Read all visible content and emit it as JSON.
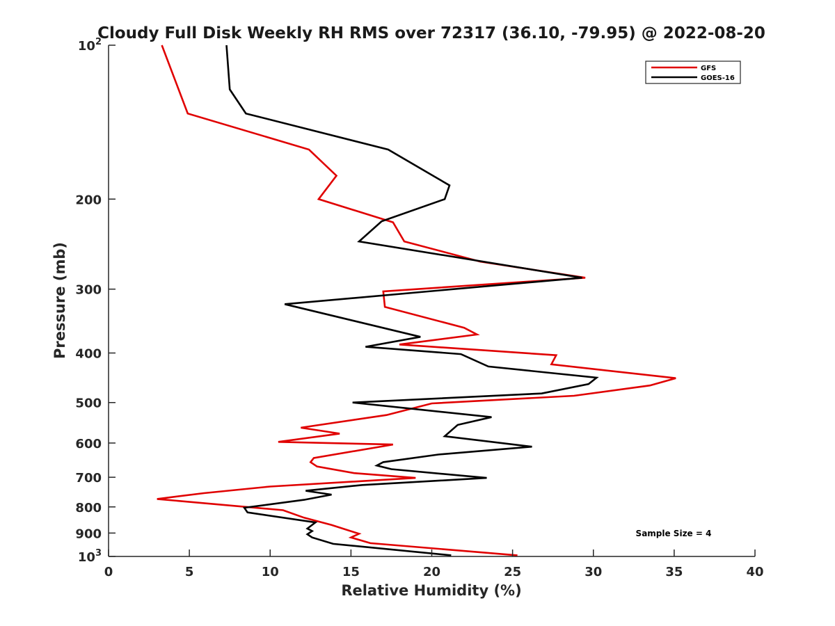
{
  "chart_data": {
    "type": "line",
    "title": "Cloudy Full Disk Weekly RH RMS over 72317 (36.10, -79.95) @ 2022-08-20",
    "xlabel": "Relative Humidity (%)",
    "ylabel": "Pressure (mb)",
    "xlim": [
      0,
      40
    ],
    "ylim": [
      100,
      1000
    ],
    "y_scale": "log",
    "y_reversed": true,
    "grid": false,
    "legend_position": "top-right",
    "x_ticks": [
      "0",
      "5",
      "10",
      "15",
      "20",
      "25",
      "30",
      "35",
      "40"
    ],
    "y_ticks": [
      {
        "base": "10",
        "exp": "2",
        "value": 100
      },
      {
        "text": "200",
        "value": 200
      },
      {
        "text": "300",
        "value": 300
      },
      {
        "text": "400",
        "value": 400
      },
      {
        "text": "500",
        "value": 500
      },
      {
        "text": "600",
        "value": 600
      },
      {
        "text": "700",
        "value": 700
      },
      {
        "text": "800",
        "value": 800
      },
      {
        "text": "900",
        "value": 900
      },
      {
        "base": "10",
        "exp": "3",
        "value": 1000
      }
    ],
    "annotation": "Sample Size = 4",
    "series": [
      {
        "name": "GFS",
        "color": "#e00000",
        "points": [
          [
            3.3,
            100
          ],
          [
            4.9,
            136
          ],
          [
            12.4,
            160
          ],
          [
            14.1,
            180
          ],
          [
            13.0,
            200
          ],
          [
            17.6,
            222
          ],
          [
            18.3,
            242
          ],
          [
            23,
            265
          ],
          [
            29.5,
            285
          ],
          [
            17.0,
            303
          ],
          [
            17.1,
            325
          ],
          [
            22.0,
            357
          ],
          [
            22.8,
            368
          ],
          [
            18.0,
            385
          ],
          [
            27.7,
            404
          ],
          [
            27.4,
            421
          ],
          [
            35.1,
            448
          ],
          [
            33.5,
            463
          ],
          [
            28.8,
            485
          ],
          [
            20.0,
            502
          ],
          [
            17.2,
            529
          ],
          [
            11.9,
            560
          ],
          [
            14.3,
            575
          ],
          [
            10.5,
            597
          ],
          [
            17.6,
            604
          ],
          [
            12.7,
            642
          ],
          [
            12.5,
            654
          ],
          [
            12.9,
            667
          ],
          [
            15.2,
            687
          ],
          [
            19.0,
            702
          ],
          [
            10.0,
            730
          ],
          [
            5.9,
            752
          ],
          [
            3.0,
            772
          ],
          [
            10.8,
            812
          ],
          [
            12.1,
            840
          ],
          [
            13.8,
            868
          ],
          [
            15.5,
            903
          ],
          [
            15.0,
            918
          ],
          [
            16.2,
            942
          ],
          [
            25.3,
            995
          ]
        ]
      },
      {
        "name": "GOES-16",
        "color": "#000000",
        "points": [
          [
            7.3,
            100
          ],
          [
            7.5,
            122
          ],
          [
            8.5,
            136
          ],
          [
            17.3,
            160
          ],
          [
            21.1,
            188
          ],
          [
            20.8,
            200
          ],
          [
            16.9,
            221
          ],
          [
            15.5,
            242
          ],
          [
            29.3,
            285
          ],
          [
            10.9,
            321
          ],
          [
            19.3,
            372
          ],
          [
            15.9,
            389
          ],
          [
            21.8,
            402
          ],
          [
            23.5,
            425
          ],
          [
            30.2,
            447
          ],
          [
            29.7,
            460
          ],
          [
            26.8,
            480
          ],
          [
            15.1,
            500
          ],
          [
            23.7,
            534
          ],
          [
            21.6,
            553
          ],
          [
            20.8,
            582
          ],
          [
            26.2,
            610
          ],
          [
            20.4,
            632
          ],
          [
            17.0,
            654
          ],
          [
            16.6,
            664
          ],
          [
            17.5,
            675
          ],
          [
            23.4,
            702
          ],
          [
            15.7,
            725
          ],
          [
            12.2,
            744
          ],
          [
            13.8,
            757
          ],
          [
            12.1,
            775
          ],
          [
            8.4,
            803
          ],
          [
            8.6,
            820
          ],
          [
            12.8,
            858
          ],
          [
            12.3,
            882
          ],
          [
            12.6,
            892
          ],
          [
            12.3,
            905
          ],
          [
            12.6,
            918
          ],
          [
            13.9,
            945
          ],
          [
            21.2,
            995
          ]
        ]
      }
    ]
  }
}
